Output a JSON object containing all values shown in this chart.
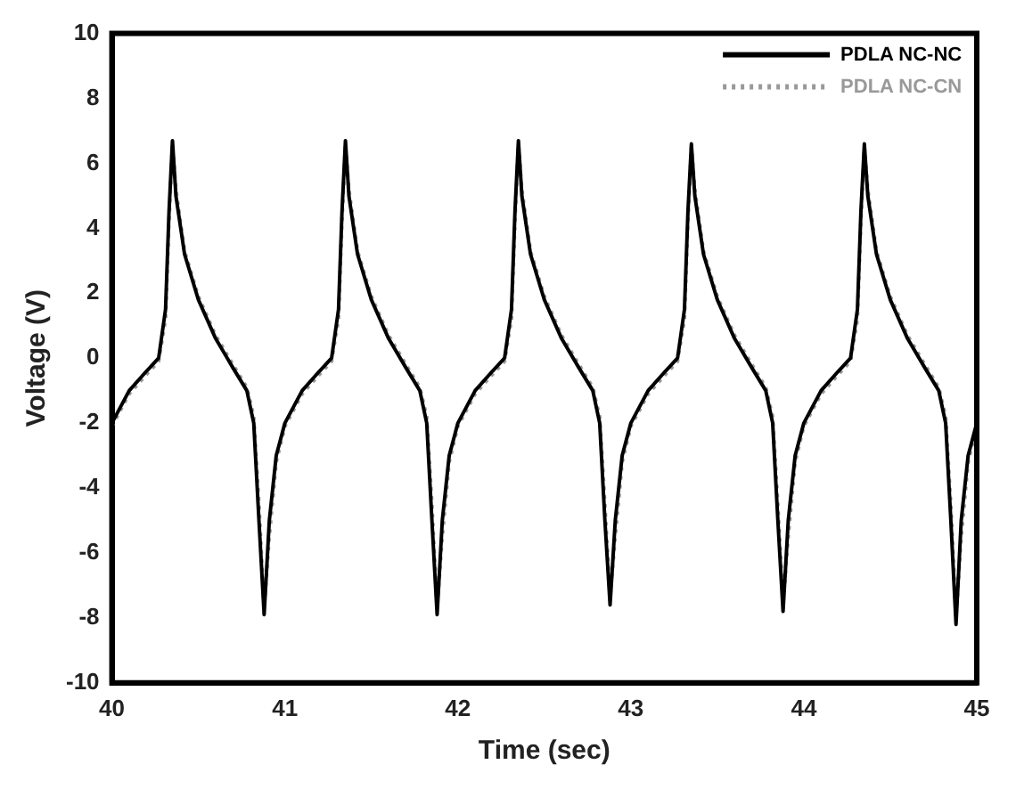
{
  "chart_data": {
    "type": "line",
    "xlabel": "Time (sec)",
    "ylabel": "Voltage (V)",
    "x": [
      40,
      40.1,
      40.2,
      40.27,
      40.31,
      40.33,
      40.35,
      40.37,
      40.42,
      40.5,
      40.6,
      40.7,
      40.78,
      40.82,
      40.85,
      40.88,
      40.91,
      40.95,
      41,
      41.1,
      41.2,
      41.27,
      41.31,
      41.33,
      41.35,
      41.37,
      41.42,
      41.5,
      41.6,
      41.7,
      41.78,
      41.82,
      41.85,
      41.88,
      41.91,
      41.95,
      42,
      42.1,
      42.2,
      42.27,
      42.31,
      42.33,
      42.35,
      42.37,
      42.42,
      42.5,
      42.6,
      42.7,
      42.78,
      42.82,
      42.85,
      42.88,
      42.91,
      42.95,
      43,
      43.1,
      43.2,
      43.27,
      43.31,
      43.33,
      43.35,
      43.37,
      43.42,
      43.5,
      43.6,
      43.7,
      43.78,
      43.82,
      43.85,
      43.88,
      43.91,
      43.95,
      44,
      44.1,
      44.2,
      44.27,
      44.31,
      44.33,
      44.35,
      44.37,
      44.42,
      44.5,
      44.6,
      44.7,
      44.78,
      44.82,
      44.85,
      44.88,
      44.91,
      44.95,
      45
    ],
    "series": [
      {
        "name": "PDLA NC-NC",
        "color": "#000000",
        "line_style": "solid",
        "values": [
          -2,
          -1,
          -0.4,
          0,
          1.5,
          4.5,
          6.7,
          5,
          3.2,
          1.8,
          0.6,
          -0.3,
          -1,
          -2,
          -5,
          -7.9,
          -5,
          -3,
          -2,
          -1,
          -0.4,
          0,
          1.5,
          4.5,
          6.7,
          5,
          3.2,
          1.8,
          0.6,
          -0.3,
          -1,
          -2,
          -5,
          -7.9,
          -5,
          -3,
          -2,
          -1,
          -0.4,
          0,
          1.5,
          4.5,
          6.7,
          5,
          3.2,
          1.8,
          0.6,
          -0.3,
          -1,
          -2,
          -5,
          -7.6,
          -5,
          -3,
          -2,
          -1,
          -0.4,
          0,
          1.5,
          4.5,
          6.6,
          5,
          3.2,
          1.8,
          0.6,
          -0.3,
          -1,
          -2,
          -5,
          -7.8,
          -5,
          -3,
          -2,
          -1,
          -0.4,
          0,
          1.5,
          4.5,
          6.6,
          5,
          3.2,
          1.8,
          0.6,
          -0.3,
          -1,
          -2,
          -5,
          -8.2,
          -5,
          -3,
          -2
        ]
      },
      {
        "name": "PDLA NC-CN",
        "color": "#999999",
        "line_style": "dotted",
        "values": [
          -2.1,
          -1.1,
          -0.5,
          -0.1,
          1.2,
          4.2,
          6.6,
          5.2,
          3.3,
          1.9,
          0.7,
          -0.2,
          -0.9,
          -1.8,
          -4.5,
          -7.7,
          -5.5,
          -3.2,
          -2.1,
          -1.1,
          -0.5,
          -0.1,
          1.2,
          4.2,
          6.6,
          5.2,
          3.3,
          1.9,
          0.7,
          -0.2,
          -0.9,
          -1.8,
          -4.5,
          -7.7,
          -5.5,
          -3.2,
          -2.1,
          -1.1,
          -0.5,
          -0.1,
          1.2,
          4.2,
          6.6,
          5.2,
          3.3,
          1.9,
          0.7,
          -0.2,
          -0.9,
          -1.8,
          -4.5,
          -7.4,
          -5.5,
          -3.2,
          -2.1,
          -1.1,
          -0.5,
          -0.1,
          1.2,
          4.2,
          6.5,
          5.2,
          3.3,
          1.9,
          0.7,
          -0.2,
          -0.9,
          -1.8,
          -4.5,
          -7.6,
          -5.5,
          -3.2,
          -2.1,
          -1.1,
          -0.5,
          -0.1,
          1.2,
          4.2,
          6.5,
          5.2,
          3.3,
          1.9,
          0.7,
          -0.2,
          -0.9,
          -1.8,
          -4.5,
          -8,
          -5.5,
          -3.2,
          -2.1
        ]
      }
    ],
    "xlim": [
      40,
      45
    ],
    "xticks": [
      40,
      41,
      42,
      43,
      44,
      45
    ],
    "ylim": [
      -10,
      10
    ],
    "yticks": [
      -10,
      -8,
      -6,
      -4,
      -2,
      0,
      2,
      4,
      6,
      8,
      10
    ],
    "grid": false,
    "legend": "top right",
    "marker": "none"
  }
}
